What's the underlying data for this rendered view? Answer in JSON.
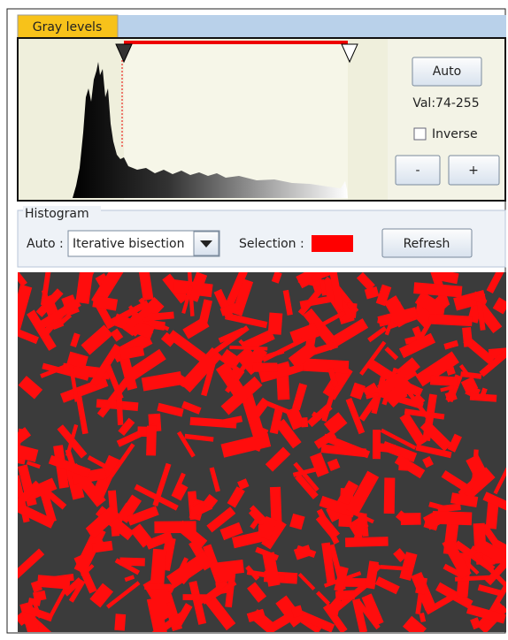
{
  "tab": {
    "title": "Gray levels"
  },
  "controls": {
    "auto_button": "Auto",
    "value_text": "Val:74-255",
    "inverse_label": "Inverse",
    "minus_button": "-",
    "plus_button": "+"
  },
  "histogram_group": {
    "title": "Histogram",
    "auto_label": "Auto :",
    "method": "Iterative bisection",
    "selection_label": "Selection :",
    "refresh_button": "Refresh"
  }
}
